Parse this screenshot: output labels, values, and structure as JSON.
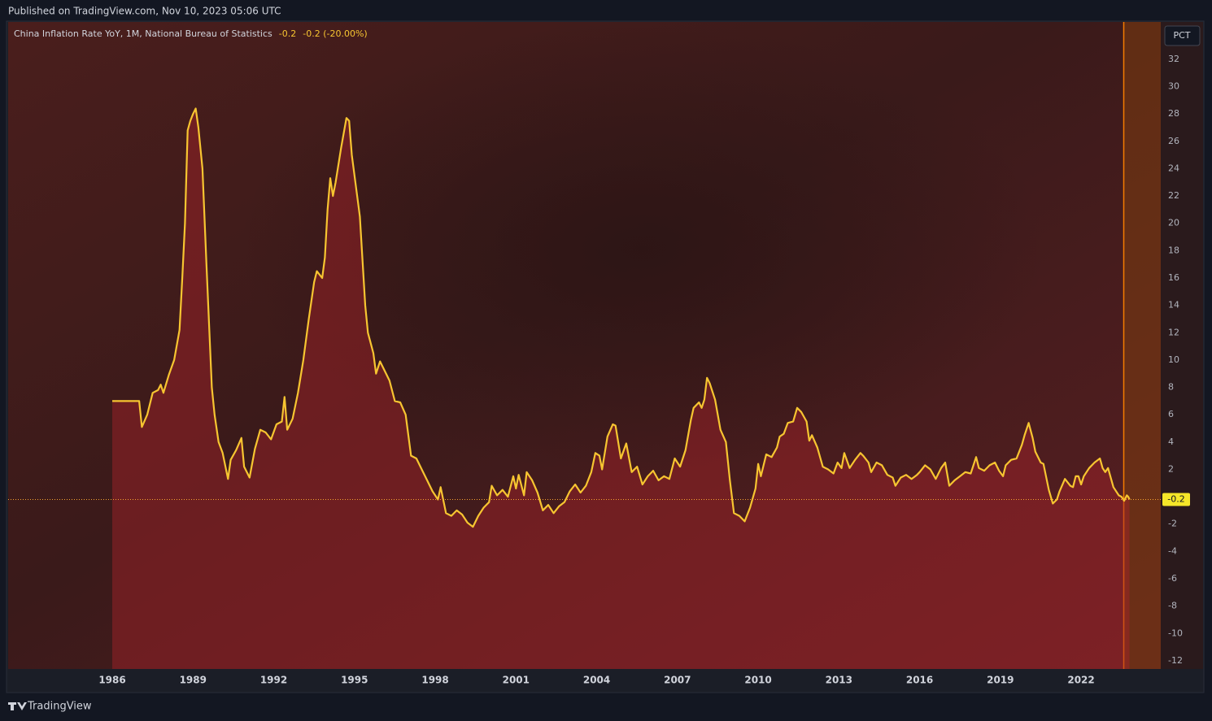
{
  "header": {
    "published": "Published on TradingView.com, Nov 10, 2023 05:06 UTC",
    "unit_button": "PCT"
  },
  "chart_data": {
    "type": "line",
    "title": "China Inflation Rate YoY, 1M, National Bureau of Statistics",
    "legend_value": "-0.2",
    "legend_change": "-0.2 (-20.00%)",
    "color": "#f7c531",
    "x": [
      1986.0,
      1987.0,
      1987.1,
      1987.3,
      1987.5,
      1987.7,
      1987.8,
      1987.9,
      1988.1,
      1988.3,
      1988.5,
      1988.6,
      1988.7,
      1988.8,
      1988.9,
      1989.0,
      1989.1,
      1989.2,
      1989.35,
      1989.5,
      1989.7,
      1989.8,
      1989.95,
      1990.1,
      1990.3,
      1990.4,
      1990.6,
      1990.8,
      1990.9,
      1991.1,
      1991.3,
      1991.5,
      1991.7,
      1991.9,
      1992.1,
      1992.3,
      1992.4,
      1992.5,
      1992.7,
      1992.9,
      1993.1,
      1993.3,
      1993.5,
      1993.6,
      1993.8,
      1993.9,
      1994.0,
      1994.1,
      1994.2,
      1994.3,
      1994.5,
      1994.7,
      1994.8,
      1994.9,
      1995.1,
      1995.2,
      1995.4,
      1995.5,
      1995.7,
      1995.8,
      1995.95,
      1996.1,
      1996.3,
      1996.5,
      1996.7,
      1996.9,
      1997.1,
      1997.3,
      1997.5,
      1997.7,
      1997.9,
      1998.1,
      1998.2,
      1998.4,
      1998.6,
      1998.8,
      1999.0,
      1999.2,
      1999.4,
      1999.6,
      1999.8,
      2000.0,
      2000.1,
      2000.3,
      2000.5,
      2000.7,
      2000.9,
      2001.0,
      2001.1,
      2001.3,
      2001.4,
      2001.6,
      2001.8,
      2002.0,
      2002.2,
      2002.4,
      2002.6,
      2002.8,
      2003.0,
      2003.2,
      2003.4,
      2003.6,
      2003.8,
      2003.95,
      2004.1,
      2004.2,
      2004.4,
      2004.6,
      2004.7,
      2004.9,
      2005.1,
      2005.3,
      2005.5,
      2005.7,
      2005.9,
      2006.1,
      2006.3,
      2006.5,
      2006.7,
      2006.9,
      2007.1,
      2007.3,
      2007.5,
      2007.6,
      2007.8,
      2007.9,
      2008.0,
      2008.1,
      2008.2,
      2008.4,
      2008.6,
      2008.8,
      2008.95,
      2009.1,
      2009.3,
      2009.5,
      2009.7,
      2009.9,
      2010.0,
      2010.1,
      2010.3,
      2010.5,
      2010.7,
      2010.8,
      2010.95,
      2011.1,
      2011.3,
      2011.45,
      2011.6,
      2011.8,
      2011.9,
      2012.0,
      2012.2,
      2012.4,
      2012.6,
      2012.8,
      2012.95,
      2013.1,
      2013.2,
      2013.4,
      2013.6,
      2013.8,
      2013.9,
      2014.1,
      2014.2,
      2014.4,
      2014.6,
      2014.8,
      2015.0,
      2015.1,
      2015.3,
      2015.5,
      2015.7,
      2015.9,
      2016.0,
      2016.2,
      2016.4,
      2016.6,
      2016.8,
      2016.95,
      2017.1,
      2017.3,
      2017.5,
      2017.7,
      2017.9,
      2018.1,
      2018.2,
      2018.4,
      2018.6,
      2018.8,
      2018.95,
      2019.1,
      2019.2,
      2019.4,
      2019.6,
      2019.8,
      2019.9,
      2020.05,
      2020.2,
      2020.3,
      2020.5,
      2020.6,
      2020.8,
      2020.95,
      2021.1,
      2021.2,
      2021.4,
      2021.6,
      2021.7,
      2021.8,
      2021.9,
      2022.0,
      2022.1,
      2022.3,
      2022.5,
      2022.7,
      2022.8,
      2022.9,
      2023.0,
      2023.2,
      2023.4,
      2023.5,
      2023.6,
      2023.7,
      2023.75,
      2023.8
    ],
    "values": [
      7.0,
      7.0,
      5.1,
      6.0,
      7.6,
      7.8,
      8.2,
      7.6,
      8.9,
      10.0,
      12.2,
      16.0,
      20.0,
      26.8,
      27.5,
      28.0,
      28.4,
      27.0,
      24.0,
      17.0,
      8.0,
      6.0,
      4.0,
      3.2,
      1.3,
      2.7,
      3.4,
      4.3,
      2.2,
      1.4,
      3.5,
      4.9,
      4.7,
      4.2,
      5.3,
      5.5,
      7.3,
      4.9,
      5.7,
      7.6,
      10.0,
      13.0,
      15.7,
      16.5,
      16.0,
      17.5,
      21.0,
      23.3,
      22.0,
      23.0,
      25.5,
      27.7,
      27.5,
      25.0,
      22.0,
      20.5,
      14.0,
      12.0,
      10.5,
      9.0,
      9.9,
      9.3,
      8.5,
      7.0,
      6.9,
      6.0,
      3.0,
      2.8,
      2.0,
      1.2,
      0.4,
      -0.2,
      0.7,
      -1.2,
      -1.4,
      -1.0,
      -1.3,
      -1.9,
      -2.2,
      -1.4,
      -0.8,
      -0.4,
      0.8,
      0.1,
      0.5,
      0.0,
      1.5,
      0.6,
      1.6,
      0.1,
      1.8,
      1.2,
      0.3,
      -1.0,
      -0.6,
      -1.2,
      -0.7,
      -0.4,
      0.4,
      0.9,
      0.3,
      0.8,
      1.8,
      3.2,
      3.0,
      2.0,
      4.4,
      5.3,
      5.2,
      2.8,
      3.9,
      1.8,
      2.2,
      0.9,
      1.5,
      1.9,
      1.2,
      1.5,
      1.3,
      2.8,
      2.2,
      3.4,
      5.6,
      6.5,
      6.9,
      6.5,
      7.1,
      8.7,
      8.3,
      7.1,
      4.9,
      4.0,
      1.2,
      -1.2,
      -1.4,
      -1.8,
      -0.8,
      0.6,
      2.4,
      1.5,
      3.1,
      2.9,
      3.6,
      4.4,
      4.6,
      5.4,
      5.5,
      6.5,
      6.2,
      5.5,
      4.1,
      4.5,
      3.6,
      2.2,
      2.0,
      1.7,
      2.5,
      2.1,
      3.2,
      2.1,
      2.7,
      3.2,
      3.0,
      2.5,
      1.8,
      2.5,
      2.3,
      1.6,
      1.4,
      0.8,
      1.4,
      1.6,
      1.3,
      1.6,
      1.8,
      2.3,
      2.0,
      1.3,
      2.1,
      2.5,
      0.8,
      1.2,
      1.5,
      1.8,
      1.7,
      2.9,
      2.1,
      1.9,
      2.3,
      2.5,
      1.9,
      1.5,
      2.3,
      2.7,
      2.8,
      3.8,
      4.5,
      5.4,
      4.3,
      3.3,
      2.5,
      2.4,
      0.5,
      -0.5,
      -0.2,
      0.4,
      1.3,
      0.8,
      0.7,
      1.5,
      1.5,
      0.9,
      1.5,
      2.1,
      2.5,
      2.8,
      2.1,
      1.8,
      2.1,
      0.7,
      0.1,
      0.0,
      -0.3,
      0.1,
      0.0,
      -0.2
    ],
    "xlim": [
      1982.13,
      2024.96
    ],
    "ylim": [
      -12.6,
      34.73
    ],
    "xticks": [
      1986,
      1989,
      1992,
      1995,
      1998,
      2001,
      2004,
      2007,
      2010,
      2013,
      2016,
      2019,
      2022
    ],
    "yticks": [
      32,
      30,
      28,
      26,
      24,
      22,
      20,
      18,
      16,
      14,
      12,
      10,
      8,
      6,
      4,
      2,
      -2,
      -4,
      -6,
      -8,
      -10,
      -12
    ]
  },
  "footer": {
    "brand": "TradingView"
  }
}
